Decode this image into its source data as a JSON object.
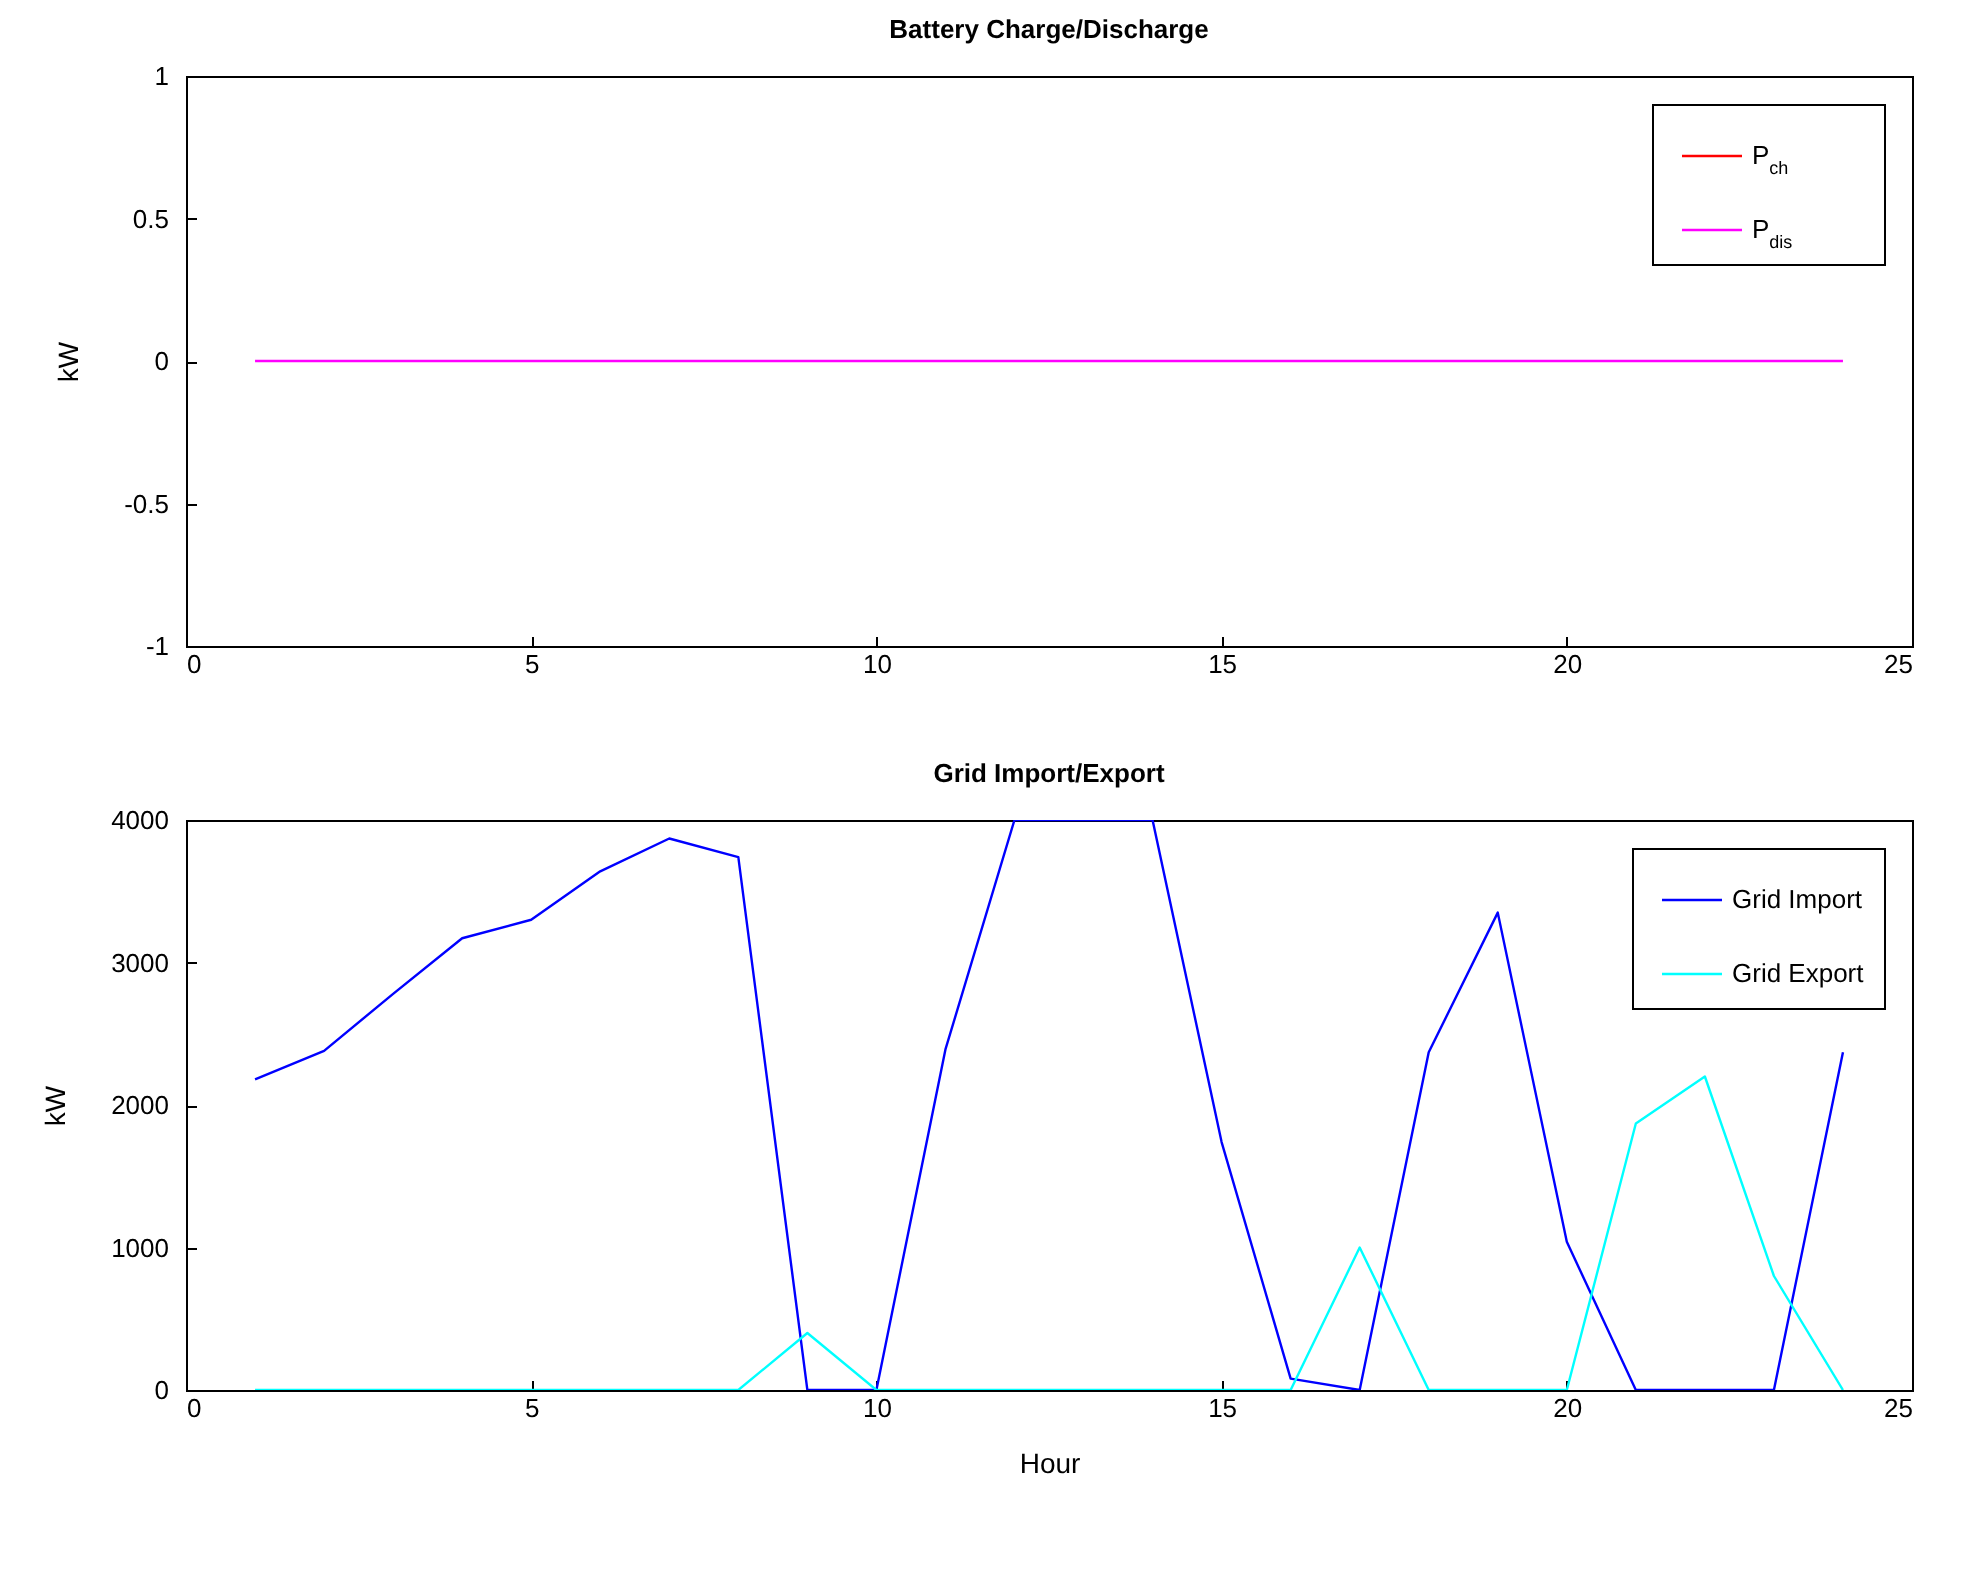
{
  "chart_data": [
    {
      "type": "line",
      "title": "Battery Charge/Discharge",
      "ylabel": "kW",
      "x": [
        1,
        2,
        3,
        4,
        5,
        6,
        7,
        8,
        9,
        10,
        11,
        12,
        13,
        14,
        15,
        16,
        17,
        18,
        19,
        20,
        21,
        22,
        23,
        24
      ],
      "xlim": [
        0,
        25
      ],
      "xticks": [
        0,
        5,
        10,
        15,
        20,
        25
      ],
      "ylim": [
        -1,
        1
      ],
      "yticks": [
        -1,
        -0.5,
        0,
        0.5,
        1
      ],
      "legend": "top right",
      "line_style": "solid",
      "series": [
        {
          "name": "P$_{ch}$",
          "color": "#ff0000",
          "values": [
            null,
            null,
            null,
            null,
            null,
            null,
            null,
            null,
            null,
            null,
            null,
            null,
            null,
            null,
            null,
            null,
            null,
            null,
            null,
            null,
            null,
            null,
            null,
            null
          ]
        },
        {
          "name": "P$_{dis}$",
          "color": "#ff00ff",
          "values": [
            0,
            0,
            0,
            0,
            0,
            0,
            0,
            0,
            0,
            0,
            0,
            0,
            0,
            0,
            0,
            0,
            0,
            0,
            0,
            0,
            0,
            0,
            0,
            0
          ]
        }
      ]
    },
    {
      "type": "line",
      "title": "Grid Import/Export",
      "xlabel": "Hour",
      "ylabel": "kW",
      "x": [
        1,
        2,
        3,
        4,
        5,
        6,
        7,
        8,
        9,
        10,
        11,
        12,
        13,
        14,
        15,
        16,
        17,
        18,
        19,
        20,
        21,
        22,
        23,
        24
      ],
      "xlim": [
        0,
        25
      ],
      "xticks": [
        0,
        5,
        10,
        15,
        20,
        25
      ],
      "ylim": [
        0,
        4000
      ],
      "yticks": [
        0,
        1000,
        2000,
        3000,
        4000
      ],
      "legend": "top right",
      "line_style": "solid",
      "series": [
        {
          "name": "Grid Import",
          "color": "#0000ff",
          "values": [
            2180,
            2380,
            2780,
            3170,
            3300,
            3640,
            3870,
            3740,
            0,
            0,
            2390,
            4000,
            4000,
            4000,
            1740,
            80,
            0,
            2370,
            3350,
            1040,
            0,
            0,
            0,
            2370
          ]
        },
        {
          "name": "Grid Export",
          "color": "#00ffff",
          "values": [
            0,
            0,
            0,
            0,
            0,
            0,
            0,
            0,
            400,
            0,
            0,
            0,
            0,
            0,
            0,
            0,
            1000,
            0,
            0,
            0,
            1870,
            2200,
            800,
            0
          ]
        }
      ]
    }
  ]
}
